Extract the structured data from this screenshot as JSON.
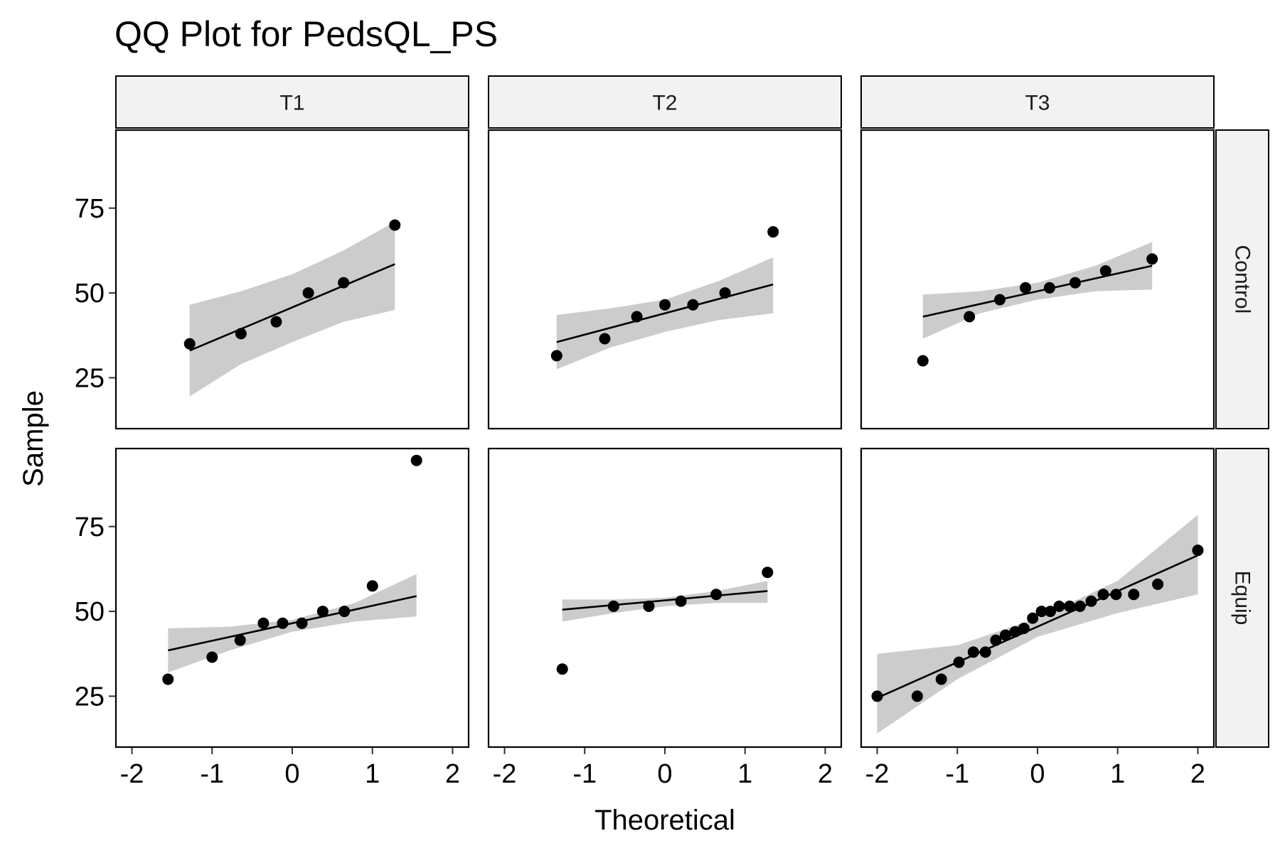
{
  "chart_data": {
    "type": "scatter",
    "title": "QQ Plot for PedsQL_PS",
    "xlabel": "Theoretical",
    "ylabel": "Sample",
    "xlim": [
      -2.2,
      2.2
    ],
    "ylim": [
      10,
      98
    ],
    "x_ticks": [
      -2,
      -1,
      0,
      1,
      2
    ],
    "x_tick_labels": [
      "-2",
      "-1",
      "0",
      "1",
      "2"
    ],
    "y_ticks": [
      25,
      50,
      75
    ],
    "y_tick_labels": [
      "25",
      "50",
      "75"
    ],
    "grid": false,
    "columns": [
      "T1",
      "T2",
      "T3"
    ],
    "rows": [
      "Control",
      "Equip"
    ],
    "colors": {
      "point": "#000000",
      "line": "#000000",
      "band": "#cccccc",
      "strip": "#f2f2f2",
      "border": "#000000"
    },
    "panels": [
      {
        "column": "T1",
        "row": "Control",
        "points": [
          [
            -1.28,
            35
          ],
          [
            -0.64,
            38
          ],
          [
            -0.2,
            41.5
          ],
          [
            0.2,
            50
          ],
          [
            0.64,
            53
          ],
          [
            1.28,
            70
          ]
        ],
        "line": [
          [
            -1.28,
            33
          ],
          [
            1.28,
            58.5
          ]
        ],
        "band_upper": [
          [
            -1.28,
            46.5
          ],
          [
            -0.64,
            50.5
          ],
          [
            0,
            55.5
          ],
          [
            0.64,
            62.5
          ],
          [
            1.28,
            71
          ]
        ],
        "band_lower": [
          [
            -1.28,
            19.5
          ],
          [
            -0.64,
            29
          ],
          [
            0,
            35.5
          ],
          [
            0.64,
            41.5
          ],
          [
            1.28,
            45
          ]
        ]
      },
      {
        "column": "T2",
        "row": "Control",
        "points": [
          [
            -1.35,
            31.5
          ],
          [
            -0.75,
            36.5
          ],
          [
            -0.35,
            43
          ],
          [
            0,
            46.5
          ],
          [
            0.35,
            46.5
          ],
          [
            0.75,
            50
          ],
          [
            1.35,
            68
          ]
        ],
        "line": [
          [
            -1.35,
            35.5
          ],
          [
            1.35,
            52.5
          ]
        ],
        "band_upper": [
          [
            -1.35,
            43.5
          ],
          [
            -0.67,
            45.5
          ],
          [
            0,
            48
          ],
          [
            0.67,
            53.5
          ],
          [
            1.35,
            60.5
          ]
        ],
        "band_lower": [
          [
            -1.35,
            27.5
          ],
          [
            -0.67,
            34
          ],
          [
            0,
            38.5
          ],
          [
            0.67,
            42
          ],
          [
            1.35,
            44
          ]
        ]
      },
      {
        "column": "T3",
        "row": "Control",
        "points": [
          [
            -1.43,
            30
          ],
          [
            -0.85,
            43
          ],
          [
            -0.47,
            48
          ],
          [
            -0.15,
            51.5
          ],
          [
            0.15,
            51.5
          ],
          [
            0.47,
            53
          ],
          [
            0.85,
            56.5
          ],
          [
            1.43,
            60
          ]
        ],
        "line": [
          [
            -1.43,
            43
          ],
          [
            1.43,
            58
          ]
        ],
        "band_upper": [
          [
            -1.43,
            49.5
          ],
          [
            -0.72,
            50.5
          ],
          [
            0,
            53
          ],
          [
            0.72,
            58
          ],
          [
            1.43,
            65
          ]
        ],
        "band_lower": [
          [
            -1.43,
            36.5
          ],
          [
            -0.72,
            44
          ],
          [
            0,
            48
          ],
          [
            0.72,
            50.5
          ],
          [
            1.43,
            51
          ]
        ]
      },
      {
        "column": "T1",
        "row": "Equip",
        "points": [
          [
            -1.55,
            30
          ],
          [
            -1.0,
            36.5
          ],
          [
            -0.65,
            41.5
          ],
          [
            -0.36,
            46.5
          ],
          [
            -0.12,
            46.5
          ],
          [
            0.12,
            46.5
          ],
          [
            0.38,
            50
          ],
          [
            0.65,
            50
          ],
          [
            1.0,
            57.5
          ],
          [
            1.55,
            94.5
          ]
        ],
        "line": [
          [
            -1.55,
            38.5
          ],
          [
            1.55,
            54.5
          ]
        ],
        "band_upper": [
          [
            -1.55,
            45
          ],
          [
            -0.78,
            45.5
          ],
          [
            0,
            47.5
          ],
          [
            0.78,
            52.5
          ],
          [
            1.55,
            61
          ]
        ],
        "band_lower": [
          [
            -1.55,
            32
          ],
          [
            -0.78,
            38.5
          ],
          [
            0,
            44
          ],
          [
            0.78,
            47
          ],
          [
            1.55,
            48.5
          ]
        ]
      },
      {
        "column": "T2",
        "row": "Equip",
        "points": [
          [
            -1.28,
            33
          ],
          [
            -0.64,
            51.5
          ],
          [
            -0.2,
            51.5
          ],
          [
            0.2,
            53
          ],
          [
            0.64,
            55
          ],
          [
            1.28,
            61.5
          ]
        ],
        "line": [
          [
            -1.28,
            50.5
          ],
          [
            1.28,
            56
          ]
        ],
        "band_upper": [
          [
            -1.28,
            53.5
          ],
          [
            -0.64,
            53.5
          ],
          [
            0,
            54
          ],
          [
            0.64,
            56
          ],
          [
            1.28,
            59
          ]
        ],
        "band_lower": [
          [
            -1.28,
            47
          ],
          [
            -0.64,
            49.5
          ],
          [
            0,
            51.5
          ],
          [
            0.64,
            52.5
          ],
          [
            1.28,
            52.5
          ]
        ]
      },
      {
        "column": "T3",
        "row": "Equip",
        "points": [
          [
            -2.0,
            25
          ],
          [
            -1.5,
            25
          ],
          [
            -1.2,
            30
          ],
          [
            -0.98,
            35
          ],
          [
            -0.8,
            38
          ],
          [
            -0.65,
            38
          ],
          [
            -0.52,
            41.5
          ],
          [
            -0.4,
            43
          ],
          [
            -0.28,
            44
          ],
          [
            -0.17,
            45
          ],
          [
            -0.06,
            48
          ],
          [
            0.05,
            50
          ],
          [
            0.16,
            50
          ],
          [
            0.27,
            51.5
          ],
          [
            0.4,
            51.5
          ],
          [
            0.53,
            51.5
          ],
          [
            0.67,
            53
          ],
          [
            0.82,
            55
          ],
          [
            0.98,
            55
          ],
          [
            1.2,
            55
          ],
          [
            1.5,
            58
          ],
          [
            2.0,
            68
          ]
        ],
        "line": [
          [
            -2.0,
            24.5
          ],
          [
            2.0,
            66.5
          ]
        ],
        "band_upper": [
          [
            -2.0,
            37.5
          ],
          [
            -1.0,
            40
          ],
          [
            0,
            48
          ],
          [
            1.0,
            59
          ],
          [
            2.0,
            78.5
          ]
        ],
        "band_lower": [
          [
            -2.0,
            14
          ],
          [
            -1.0,
            30
          ],
          [
            0,
            42.5
          ],
          [
            1.0,
            49.5
          ],
          [
            2.0,
            55
          ]
        ]
      }
    ]
  }
}
